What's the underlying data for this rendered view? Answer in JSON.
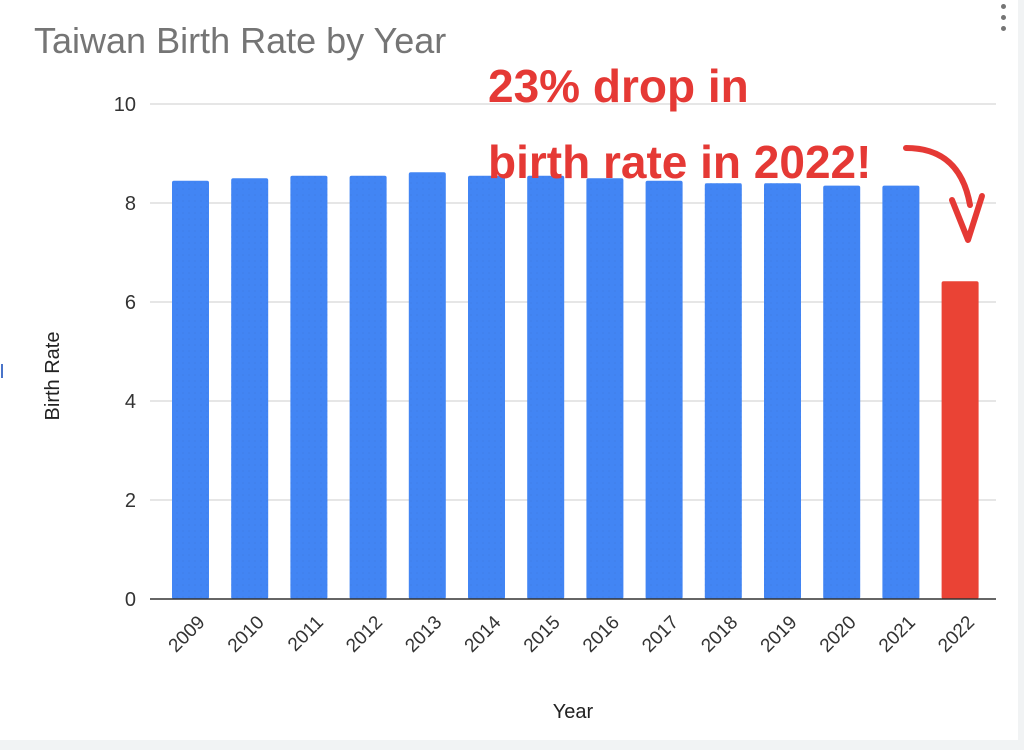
{
  "chart_data": {
    "type": "bar",
    "title": "Taiwan Birth Rate by Year",
    "xlabel": "Year",
    "ylabel": "Birth Rate",
    "ylim": [
      0,
      10
    ],
    "yticks": [
      0,
      2,
      4,
      6,
      8,
      10
    ],
    "grid": true,
    "categories": [
      "2009",
      "2010",
      "2011",
      "2012",
      "2013",
      "2014",
      "2015",
      "2016",
      "2017",
      "2018",
      "2019",
      "2020",
      "2021",
      "2022"
    ],
    "values": [
      8.45,
      8.5,
      8.55,
      8.55,
      8.62,
      8.55,
      8.55,
      8.5,
      8.45,
      8.4,
      8.4,
      8.35,
      8.35,
      6.42
    ],
    "colors": {
      "default": "#4285f4",
      "highlight": "#ea4335"
    },
    "highlight_category": "2022",
    "annotation": {
      "lines": [
        "23% drop in",
        "birth rate in 2022!"
      ],
      "color": "#e53935"
    }
  }
}
